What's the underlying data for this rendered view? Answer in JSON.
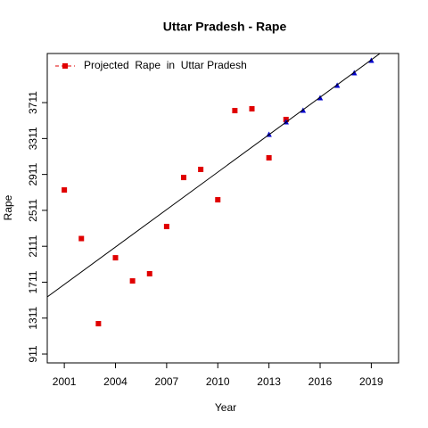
{
  "chart_data": {
    "type": "scatter",
    "title": "Uttar Pradesh  -  Rape",
    "xlabel": "Year",
    "ylabel": "Rape",
    "xlim": [
      2000,
      2020.6
    ],
    "ylim": [
      812,
      4258
    ],
    "xticks": [
      2001,
      2004,
      2007,
      2010,
      2013,
      2016,
      2019
    ],
    "yticks": [
      911,
      1311,
      1711,
      2111,
      2511,
      2911,
      3311,
      3711
    ],
    "legend": "top-left",
    "series": [
      {
        "name": "Projected  Rape  in  Uttar Pradesh",
        "color": "#e00000",
        "marker": "square",
        "x": [
          2001,
          2002,
          2003,
          2004,
          2005,
          2006,
          2007,
          2008,
          2009,
          2010,
          2011,
          2012,
          2013,
          2014
        ],
        "values": [
          2738,
          2197,
          1249,
          1983,
          1725,
          1805,
          2331,
          2877,
          2967,
          2629,
          3622,
          3642,
          3096,
          3523
        ]
      },
      {
        "color": "#0000cc",
        "marker": "triangle",
        "x": [
          2013,
          2014,
          2015,
          2016,
          2017,
          2018,
          2019
        ],
        "values": [
          3354,
          3493,
          3622,
          3761,
          3900,
          4039,
          4178
        ]
      },
      {
        "color": "#000000",
        "marker": "line",
        "x": [
          2000,
          2020.6
        ],
        "values": [
          1547,
          4410
        ]
      }
    ]
  }
}
